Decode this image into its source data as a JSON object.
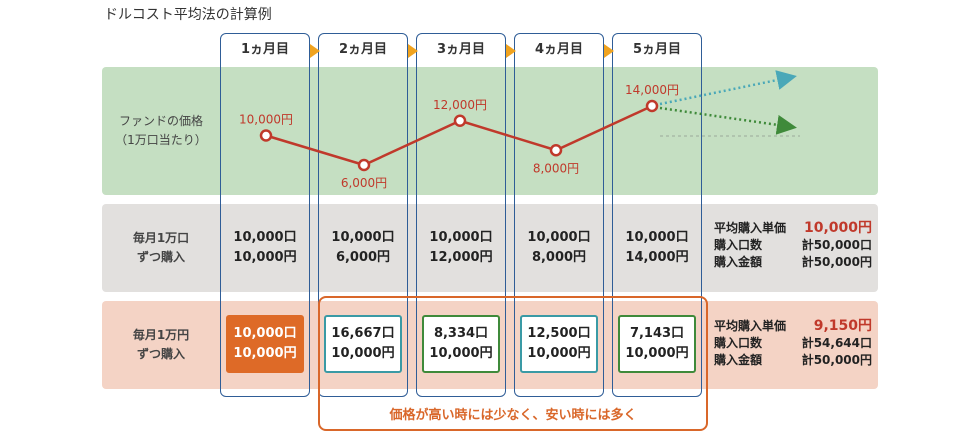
{
  "title": "ドルコスト平均法の計算例",
  "months": [
    "1ヵ月目",
    "2ヵ月目",
    "3ヵ月目",
    "4ヵ月目",
    "5ヵ月目"
  ],
  "rows": {
    "price": {
      "label_line1": "ファンドの価格",
      "label_line2": "（1万口当たり）"
    },
    "fixed_units": {
      "label_line1": "毎月1万口",
      "label_line2": "ずつ購入"
    },
    "fixed_yen": {
      "label_line1": "毎月1万円",
      "label_line2": "ずつ購入"
    }
  },
  "chart_data": {
    "type": "line",
    "title": "ファンドの価格（1万口当たり）",
    "categories": [
      "1ヵ月目",
      "2ヵ月目",
      "3ヵ月目",
      "4ヵ月目",
      "5ヵ月目"
    ],
    "values": [
      10000,
      6000,
      12000,
      8000,
      14000
    ],
    "data_labels": [
      "10,000円",
      "6,000円",
      "12,000円",
      "8,000円",
      "14,000円"
    ],
    "line_color": "#c0392b",
    "trend_colors": [
      "#4aa8b8",
      "#3f8a3a"
    ]
  },
  "fixed_units_cells": [
    {
      "units": "10,000口",
      "cost": "10,000円"
    },
    {
      "units": "10,000口",
      "cost": "6,000円"
    },
    {
      "units": "10,000口",
      "cost": "12,000円"
    },
    {
      "units": "10,000口",
      "cost": "8,000円"
    },
    {
      "units": "10,000口",
      "cost": "14,000円"
    }
  ],
  "fixed_yen_cells": [
    {
      "units": "10,000口",
      "cost": "10,000円"
    },
    {
      "units": "16,667口",
      "cost": "10,000円"
    },
    {
      "units": "8,334口",
      "cost": "10,000円"
    },
    {
      "units": "12,500口",
      "cost": "10,000円"
    },
    {
      "units": "7,143口",
      "cost": "10,000円"
    }
  ],
  "summary_fixed_units": {
    "avg_label": "平均購入単価",
    "avg_value": "10,000円",
    "units_label": "購入口数",
    "units_value": "計50,000口",
    "amount_label": "購入金額",
    "amount_value": "計50,000円"
  },
  "summary_fixed_yen": {
    "avg_label": "平均購入単価",
    "avg_value": "9,150円",
    "units_label": "購入口数",
    "units_value": "計54,644口",
    "amount_label": "購入金額",
    "amount_value": "計50,000円"
  },
  "highlight_text": "価格が高い時には少なく、安い時には多く",
  "colors": {
    "column_border": "#2f5d97",
    "arrow": "#f0a31f",
    "accent_orange": "#de6a27"
  }
}
